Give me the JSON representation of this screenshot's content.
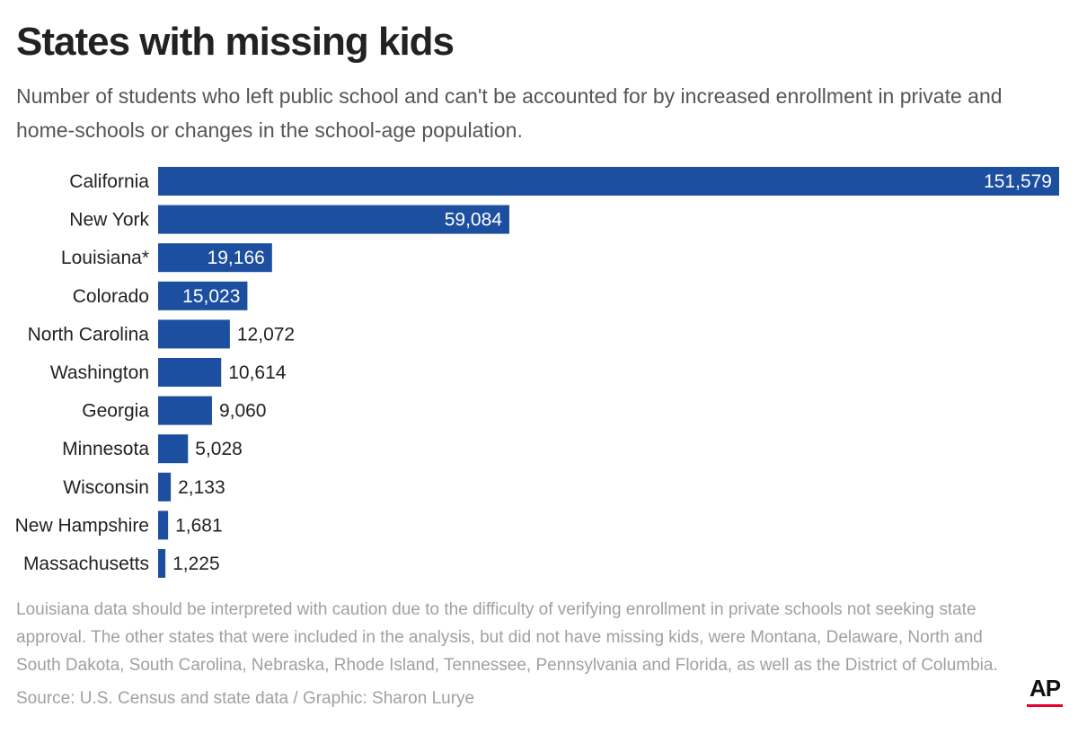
{
  "header": {
    "title": "States with missing kids",
    "subtitle": "Number of students who left public school and can't be accounted for by increased enrollment in private and home-schools or changes in the school-age population."
  },
  "chart_data": {
    "type": "bar",
    "orientation": "horizontal",
    "categories": [
      "California",
      "New York",
      "Louisiana*",
      "Colorado",
      "North Carolina",
      "Washington",
      "Georgia",
      "Minnesota",
      "Wisconsin",
      "New Hampshire",
      "Massachusetts"
    ],
    "values": [
      151579,
      59084,
      19166,
      15023,
      12072,
      10614,
      9060,
      5028,
      2133,
      1681,
      1225
    ],
    "value_labels": [
      "151,579",
      "59,084",
      "19,166",
      "15,023",
      "12,072",
      "10,614",
      "9,060",
      "5,028",
      "2,133",
      "1,681",
      "1,225"
    ],
    "bar_color": "#1c4fa0",
    "grid": false,
    "xlim": [
      0,
      151579
    ]
  },
  "footer": {
    "note": "Louisiana data should be interpreted with caution due to the difficulty of verifying enrollment in private schools not seeking state approval. The other states that were included in the analysis, but did not have missing kids, were Montana, Delaware, North and South Dakota, South Carolina, Nebraska, Rhode Island, Tennessee, Pennsylvania and Florida, as well as the District of Columbia.",
    "source": "Source: U.S. Census and state data / Graphic: Sharon Lurye",
    "logo": "AP",
    "logo_accent": "#e4002b"
  }
}
